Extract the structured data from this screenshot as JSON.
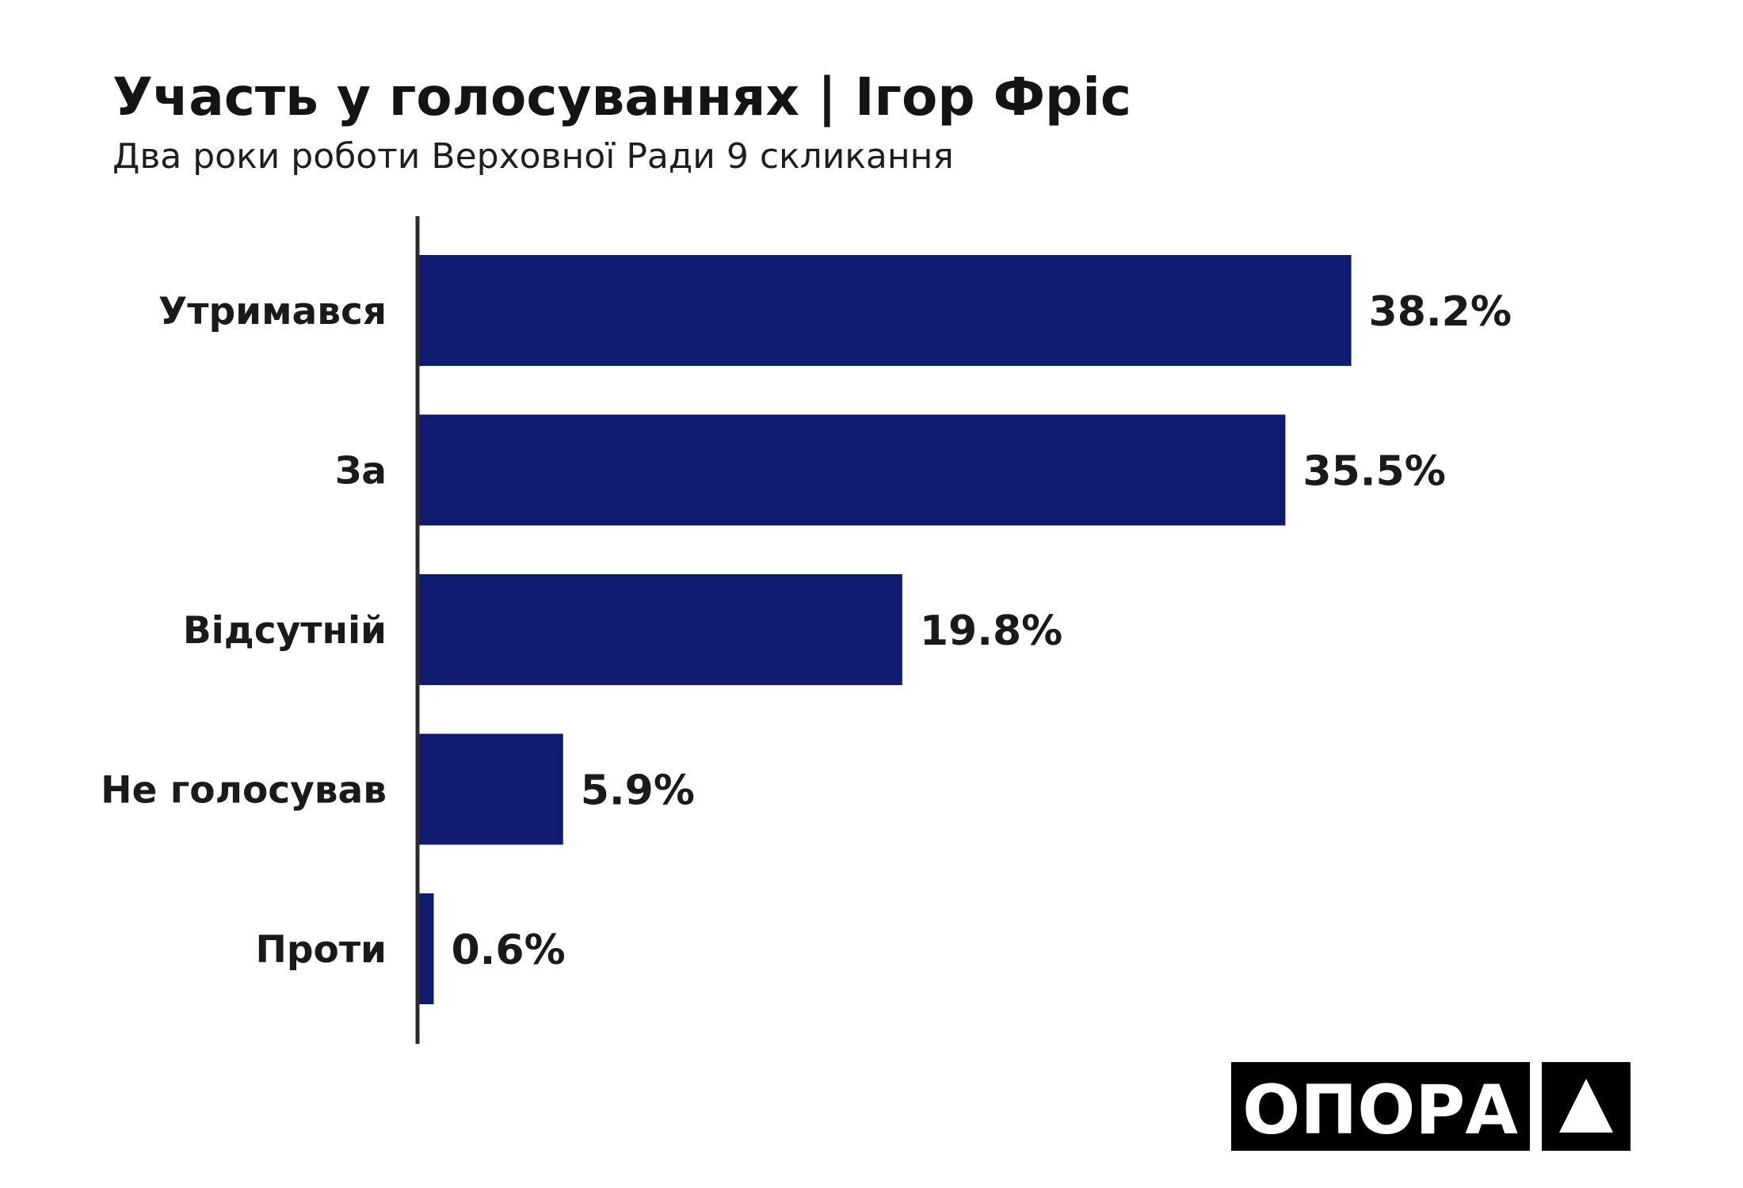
{
  "chart_data": {
    "type": "bar",
    "orientation": "horizontal",
    "title": "Участь у голосуваннях | Ігор Фріс",
    "subtitle": "Два роки роботи Верховної Ради 9 скликання",
    "categories": [
      "Утримався",
      "За",
      "Відсутній",
      "Не голосував",
      "Проти"
    ],
    "values": [
      38.2,
      35.5,
      19.8,
      5.9,
      0.6
    ],
    "value_labels": [
      "38.2%",
      "35.5%",
      "19.8%",
      "5.9%",
      "0.6%"
    ],
    "xlim": [
      0,
      50
    ],
    "grid": false,
    "bar_color": "#0e1b6e",
    "axis_color": "#2a2a2a"
  },
  "brand": {
    "logo_text": "ОПОРА",
    "logo_color": "#000000"
  }
}
